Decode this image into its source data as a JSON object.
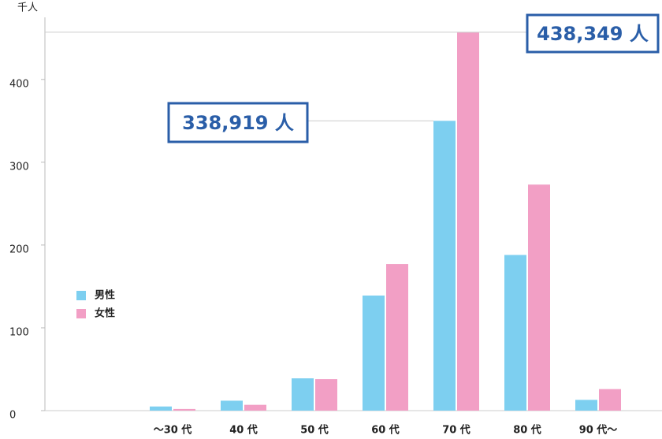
{
  "chart_data": {
    "type": "bar",
    "y_label": "千人",
    "categories": [
      "〜30 代",
      "40 代",
      "50 代",
      "60 代",
      "70 代",
      "80 代",
      "90 代〜"
    ],
    "series": [
      {
        "name": "男性",
        "color": "#7dcff0",
        "values": [
          5,
          12,
          39,
          139,
          350,
          188,
          13
        ]
      },
      {
        "name": "女性",
        "color": "#f29fc5",
        "values": [
          2,
          7,
          38,
          177,
          457,
          273,
          26
        ]
      }
    ],
    "ylim": [
      0,
      475
    ],
    "yticks": [
      0,
      100,
      200,
      300,
      400
    ],
    "annotations": [
      "338,919 人",
      "438,349 人"
    ],
    "legend": "left"
  }
}
